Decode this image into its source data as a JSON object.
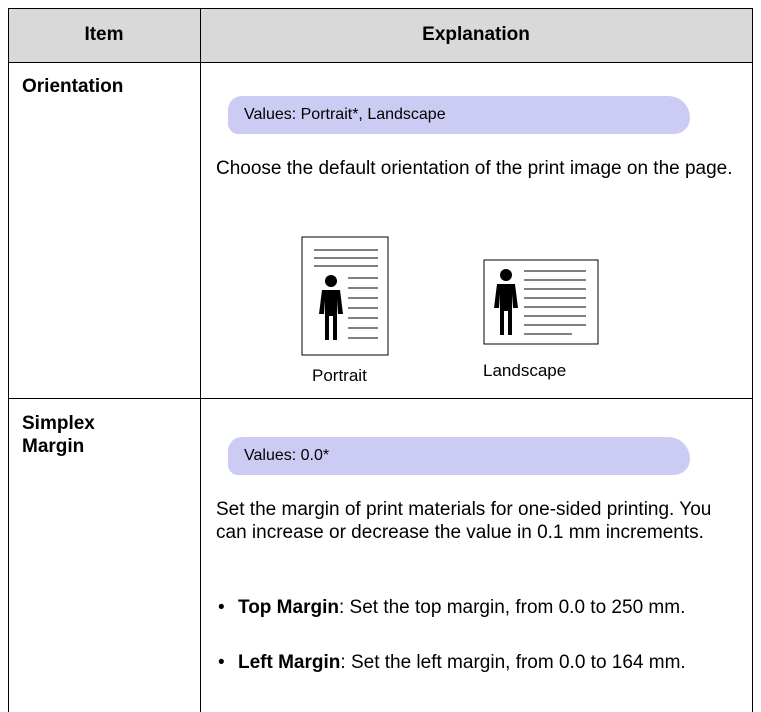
{
  "table": {
    "headers": [
      "Item",
      "Explanation"
    ],
    "rows": [
      {
        "item": "Orientation",
        "values": "Values: Portrait*, Landscape",
        "description": "Choose the default orientation of the print image on the page.",
        "figures": [
          {
            "caption": "Portrait"
          },
          {
            "caption": "Landscape"
          }
        ]
      },
      {
        "item": "Simplex Margin",
        "values": "Values: 0.0*",
        "description": "Set the margin of print materials for one-sided printing. You can increase or decrease the value in 0.1 mm increments.",
        "bullets": [
          {
            "term": "Top Margin",
            "text": ": Set the top margin, from 0.0 to 250 mm."
          },
          {
            "term": "Left Margin",
            "text": ": Set the left margin, from 0.0 to 164 mm."
          }
        ]
      }
    ]
  }
}
